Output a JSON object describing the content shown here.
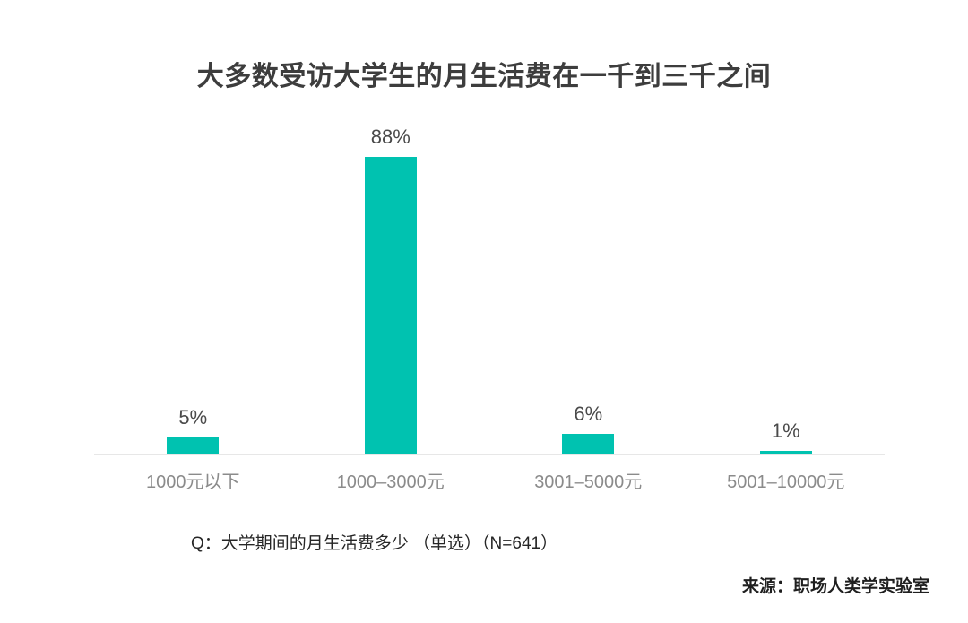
{
  "title": "大多数受访大学生的月生活费在一千到三千之间",
  "footnote": "Q：大学期间的月生活费多少 （单选）（N=641）",
  "source": "来源：职场人类学实验室",
  "colors": {
    "bar": "#00c2b0",
    "title_text": "#3d3d3d",
    "value_label_text": "#4a4a4a",
    "category_text": "#8b8b8b",
    "axis_line": "#e7e7e7",
    "footnote_text": "#262626",
    "source_text": "#1f1f1f",
    "background": "#ffffff"
  },
  "chart_data": {
    "type": "bar",
    "title": "大多数受访大学生的月生活费在一千到三千之间",
    "categories": [
      "1000元以下",
      "1000–3000元",
      "3001–5000元",
      "5001–10000元"
    ],
    "values": [
      5,
      88,
      6,
      1
    ],
    "value_labels": [
      "5%",
      "88%",
      "6%",
      "1%"
    ],
    "xlabel": "",
    "ylabel": "",
    "ylim": [
      0,
      100
    ],
    "grid": false,
    "legend": false,
    "question": "Q：大学期间的月生活费多少 （单选）（N=641）",
    "sample_size": "N=641",
    "source": "来源：职场人类学实验室"
  }
}
